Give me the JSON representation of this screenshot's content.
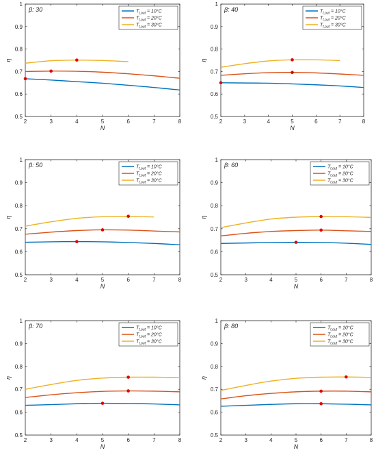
{
  "figure": {
    "legend_labels": {
      "prefix": "T",
      "subscript": "t,out",
      "entries": [
        " = 10°C",
        " = 20°C",
        " = 30°C"
      ]
    },
    "series_colors": [
      "#0072BD",
      "#D95319",
      "#EDB120"
    ],
    "optimum_marker_color": "#E00000"
  },
  "chart_data": [
    {
      "type": "line",
      "title": "β: 30",
      "xlabel": "N",
      "ylabel": "η",
      "xlim": [
        2,
        8
      ],
      "ylim": [
        0.5,
        1.0
      ],
      "xticks": [
        2,
        3,
        4,
        5,
        6,
        7,
        8
      ],
      "yticks": [
        0.5,
        0.6,
        0.7,
        0.8,
        0.9,
        1.0
      ],
      "legend": "top-right",
      "grid": false,
      "series": [
        {
          "name": "Tt,out = 10°C",
          "x": [
            2,
            3,
            4,
            5,
            6,
            7,
            8
          ],
          "y": [
            0.668,
            0.662,
            0.655,
            0.648,
            0.639,
            0.629,
            0.618
          ],
          "marker": {
            "x": 2,
            "y": 0.668
          }
        },
        {
          "name": "Tt,out = 20°C",
          "x": [
            2,
            3,
            4,
            5,
            6,
            7,
            8
          ],
          "y": [
            0.7,
            0.702,
            0.701,
            0.697,
            0.69,
            0.681,
            0.67
          ],
          "marker": {
            "x": 3,
            "y": 0.702
          }
        },
        {
          "name": "Tt,out = 30°C",
          "x": [
            2,
            3,
            4,
            5,
            6
          ],
          "y": [
            0.737,
            0.748,
            0.751,
            0.749,
            0.744
          ],
          "marker": {
            "x": 4,
            "y": 0.751
          }
        }
      ]
    },
    {
      "type": "line",
      "title": "β: 40",
      "xlabel": "N",
      "ylabel": "η",
      "xlim": [
        2,
        8
      ],
      "ylim": [
        0.5,
        1.0
      ],
      "xticks": [
        2,
        3,
        4,
        5,
        6,
        7,
        8
      ],
      "yticks": [
        0.5,
        0.6,
        0.7,
        0.8,
        0.9,
        1.0
      ],
      "legend": "top-right",
      "grid": false,
      "series": [
        {
          "name": "Tt,out = 10°C",
          "x": [
            2,
            3,
            4,
            5,
            6,
            7,
            8
          ],
          "y": [
            0.65,
            0.649,
            0.648,
            0.645,
            0.641,
            0.636,
            0.629
          ],
          "marker": {
            "x": 2,
            "y": 0.65
          }
        },
        {
          "name": "Tt,out = 20°C",
          "x": [
            2,
            3,
            4,
            5,
            6,
            7,
            8
          ],
          "y": [
            0.683,
            0.69,
            0.695,
            0.696,
            0.694,
            0.689,
            0.683
          ],
          "marker": {
            "x": 5,
            "y": 0.696
          }
        },
        {
          "name": "Tt,out = 30°C",
          "x": [
            2,
            3,
            4,
            5,
            6,
            7
          ],
          "y": [
            0.719,
            0.735,
            0.747,
            0.752,
            0.752,
            0.749
          ],
          "marker": {
            "x": 5,
            "y": 0.752
          }
        }
      ]
    },
    {
      "type": "line",
      "title": "β: 50",
      "xlabel": "N",
      "ylabel": "η",
      "xlim": [
        2,
        8
      ],
      "ylim": [
        0.5,
        1.0
      ],
      "xticks": [
        2,
        3,
        4,
        5,
        6,
        7,
        8
      ],
      "yticks": [
        0.5,
        0.6,
        0.7,
        0.8,
        0.9,
        1.0
      ],
      "legend": "top-right",
      "grid": false,
      "series": [
        {
          "name": "Tt,out = 10°C",
          "x": [
            2,
            3,
            4,
            5,
            6,
            7,
            8
          ],
          "y": [
            0.641,
            0.643,
            0.644,
            0.643,
            0.64,
            0.636,
            0.63
          ],
          "marker": {
            "x": 4,
            "y": 0.644
          }
        },
        {
          "name": "Tt,out = 20°C",
          "x": [
            2,
            3,
            4,
            5,
            6,
            7,
            8
          ],
          "y": [
            0.676,
            0.685,
            0.692,
            0.695,
            0.694,
            0.69,
            0.686
          ],
          "marker": {
            "x": 5,
            "y": 0.695
          }
        },
        {
          "name": "Tt,out = 30°C",
          "x": [
            2,
            3,
            4,
            5,
            6,
            7
          ],
          "y": [
            0.711,
            0.73,
            0.745,
            0.752,
            0.754,
            0.751
          ],
          "marker": {
            "x": 6,
            "y": 0.754
          }
        }
      ]
    },
    {
      "type": "line",
      "title": "β: 60",
      "xlabel": "N",
      "ylabel": "η",
      "xlim": [
        2,
        8
      ],
      "ylim": [
        0.5,
        1.0
      ],
      "xticks": [
        2,
        3,
        4,
        5,
        6,
        7,
        8
      ],
      "yticks": [
        0.5,
        0.6,
        0.7,
        0.8,
        0.9,
        1.0
      ],
      "legend": "top-right",
      "grid": false,
      "series": [
        {
          "name": "Tt,out = 10°C",
          "x": [
            2,
            3,
            4,
            5,
            6,
            7,
            8
          ],
          "y": [
            0.636,
            0.638,
            0.64,
            0.641,
            0.64,
            0.637,
            0.632
          ],
          "marker": {
            "x": 5,
            "y": 0.641
          }
        },
        {
          "name": "Tt,out = 20°C",
          "x": [
            2,
            3,
            4,
            5,
            6,
            7,
            8
          ],
          "y": [
            0.669,
            0.68,
            0.688,
            0.692,
            0.694,
            0.691,
            0.688
          ],
          "marker": {
            "x": 6,
            "y": 0.694
          }
        },
        {
          "name": "Tt,out = 30°C",
          "x": [
            2,
            3,
            4,
            5,
            6,
            7,
            8
          ],
          "y": [
            0.705,
            0.725,
            0.742,
            0.75,
            0.753,
            0.752,
            0.749
          ],
          "marker": {
            "x": 6,
            "y": 0.753
          }
        }
      ]
    },
    {
      "type": "line",
      "title": "β: 70",
      "xlabel": "N",
      "ylabel": "η",
      "xlim": [
        2,
        8
      ],
      "ylim": [
        0.5,
        1.0
      ],
      "xticks": [
        2,
        3,
        4,
        5,
        6,
        7,
        8
      ],
      "yticks": [
        0.5,
        0.6,
        0.7,
        0.8,
        0.9,
        1.0
      ],
      "legend": "top-right",
      "grid": false,
      "series": [
        {
          "name": "Tt,out = 10°C",
          "x": [
            2,
            3,
            4,
            5,
            6,
            7,
            8
          ],
          "y": [
            0.63,
            0.633,
            0.637,
            0.639,
            0.638,
            0.636,
            0.632
          ],
          "marker": {
            "x": 5,
            "y": 0.639
          }
        },
        {
          "name": "Tt,out = 20°C",
          "x": [
            2,
            3,
            4,
            5,
            6,
            7,
            8
          ],
          "y": [
            0.664,
            0.676,
            0.685,
            0.691,
            0.693,
            0.692,
            0.689
          ],
          "marker": {
            "x": 6,
            "y": 0.693
          }
        },
        {
          "name": "Tt,out = 30°C",
          "x": [
            2,
            3,
            4,
            5,
            6,
            7,
            8
          ],
          "y": [
            0.7,
            0.721,
            0.739,
            0.749,
            0.753,
            0.753,
            0.751
          ],
          "marker": {
            "x": 6,
            "y": 0.753
          }
        }
      ]
    },
    {
      "type": "line",
      "title": "β: 80",
      "xlabel": "N",
      "ylabel": "η",
      "xlim": [
        2,
        8
      ],
      "ylim": [
        0.5,
        1.0
      ],
      "xticks": [
        2,
        3,
        4,
        5,
        6,
        7,
        8
      ],
      "yticks": [
        0.5,
        0.6,
        0.7,
        0.8,
        0.9,
        1.0
      ],
      "legend": "top-right",
      "grid": false,
      "series": [
        {
          "name": "Tt,out = 10°C",
          "x": [
            2,
            3,
            4,
            5,
            6,
            7,
            8
          ],
          "y": [
            0.626,
            0.63,
            0.634,
            0.637,
            0.637,
            0.635,
            0.632
          ],
          "marker": {
            "x": 6,
            "y": 0.637
          }
        },
        {
          "name": "Tt,out = 20°C",
          "x": [
            2,
            3,
            4,
            5,
            6,
            7,
            8
          ],
          "y": [
            0.658,
            0.672,
            0.682,
            0.689,
            0.692,
            0.692,
            0.689
          ],
          "marker": {
            "x": 6,
            "y": 0.692
          }
        },
        {
          "name": "Tt,out = 30°C",
          "x": [
            2,
            3,
            4,
            5,
            6,
            7,
            8
          ],
          "y": [
            0.695,
            0.717,
            0.736,
            0.748,
            0.753,
            0.754,
            0.752
          ],
          "marker": {
            "x": 7,
            "y": 0.754
          }
        }
      ]
    }
  ]
}
